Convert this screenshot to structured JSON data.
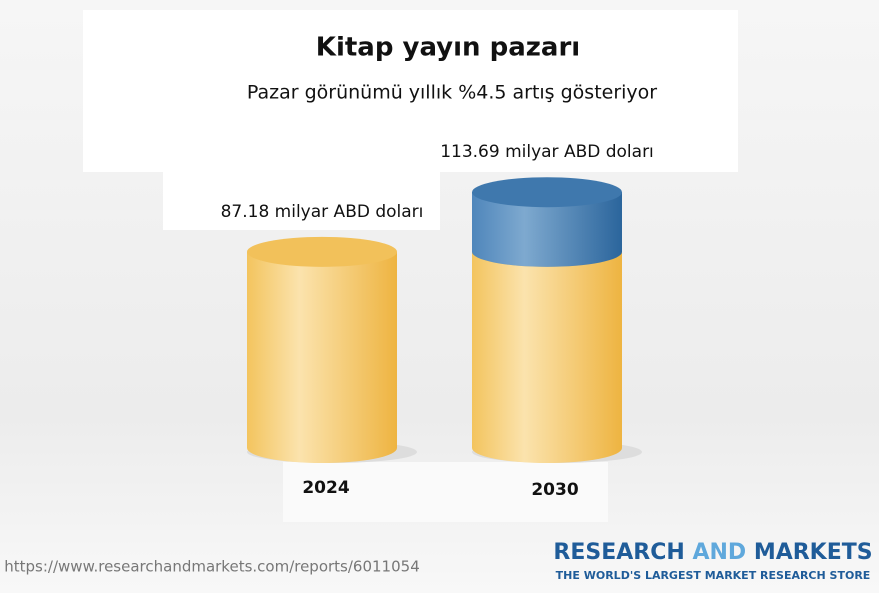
{
  "chart_data": {
    "type": "cylinder",
    "title": "Kitap yayın pazarı",
    "subtitle": "Pazar görünümü yıllık %4.5 artış gösteriyor",
    "categories": [
      "2024",
      "2030"
    ],
    "values": [
      87.18,
      113.69
    ],
    "value_labels": [
      "87.18 milyar ABD doları",
      "113.69 milyar ABD doları"
    ],
    "color": "#f2c15a",
    "growth_color": "#3f78ad"
  },
  "footer": {
    "url": "https://www.researchandmarkets.com/reports/6011054",
    "brand": [
      "RESEARCH",
      "AND",
      "MARKETS"
    ],
    "tagline": "THE WORLD'S LARGEST MARKET RESEARCH STORE"
  }
}
